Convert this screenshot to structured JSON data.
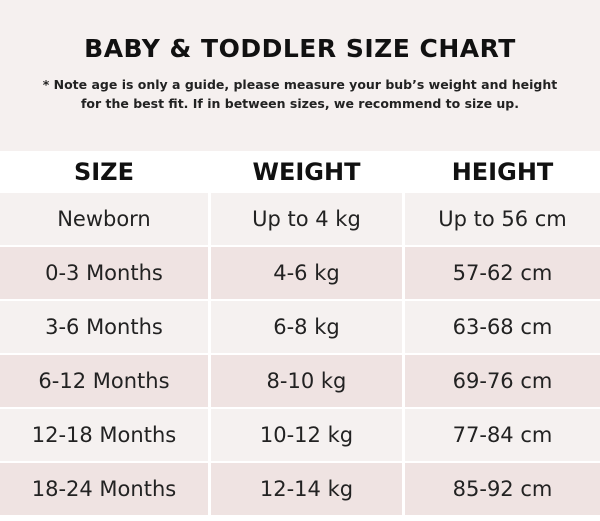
{
  "title": "BABY & TODDLER SIZE CHART",
  "note": "* Note age is only a guide, please measure your bub’s weight and height for the best fit. If in between sizes, we recommend to size up.",
  "colors": {
    "header_bg": "#f5f0ef",
    "row_light": "#f5f1f0",
    "row_pink": "#efe3e2"
  },
  "table": {
    "headers": [
      "SIZE",
      "WEIGHT",
      "HEIGHT"
    ],
    "rows": [
      [
        "Newborn",
        "Up to 4 kg",
        "Up to 56 cm"
      ],
      [
        "0-3 Months",
        "4-6 kg",
        "57-62 cm"
      ],
      [
        "3-6 Months",
        "6-8 kg",
        "63-68 cm"
      ],
      [
        "6-12 Months",
        "8-10 kg",
        "69-76 cm"
      ],
      [
        "12-18 Months",
        "10-12 kg",
        "77-84 cm"
      ],
      [
        "18-24 Months",
        "12-14 kg",
        "85-92 cm"
      ]
    ]
  }
}
